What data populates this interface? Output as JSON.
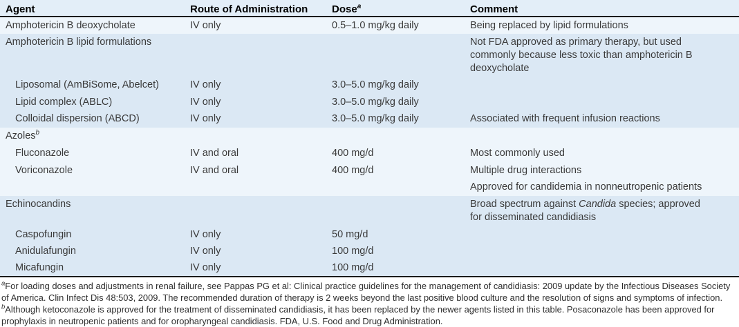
{
  "colors": {
    "band_light": "#eef5fb",
    "band_dark": "#dbe8f4",
    "header_bg": "#e3eef8",
    "rule": "#1a1a1a"
  },
  "table": {
    "columns": [
      {
        "label": "Agent",
        "sup": ""
      },
      {
        "label": "Route of Administration",
        "sup": ""
      },
      {
        "label": "Dose",
        "sup": "a"
      },
      {
        "label": "Comment",
        "sup": ""
      }
    ],
    "rows": [
      {
        "agent": "Amphotericin B deoxycholate",
        "agent_sup": "",
        "indent": false,
        "route": "IV only",
        "dose": "0.5–1.0 mg/kg daily",
        "comment_pre": "Being replaced by lipid formulations",
        "comment_italic": "",
        "comment_post": "",
        "band": "band_light"
      },
      {
        "agent": "Amphotericin B lipid formulations",
        "agent_sup": "",
        "indent": false,
        "route": "",
        "dose": "",
        "comment_pre": "Not FDA approved as primary therapy, but used commonly because less toxic than amphotericin B deoxycholate",
        "comment_italic": "",
        "comment_post": "",
        "band": "band_dark"
      },
      {
        "agent": "Liposomal (AmBiSome, Abelcet)",
        "agent_sup": "",
        "indent": true,
        "route": "IV only",
        "dose": "3.0–5.0 mg/kg daily",
        "comment_pre": "",
        "comment_italic": "",
        "comment_post": "",
        "band": "band_dark"
      },
      {
        "agent": "Lipid complex (ABLC)",
        "agent_sup": "",
        "indent": true,
        "route": "IV only",
        "dose": "3.0–5.0 mg/kg daily",
        "comment_pre": "",
        "comment_italic": "",
        "comment_post": "",
        "band": "band_dark"
      },
      {
        "agent": "Colloidal dispersion (ABCD)",
        "agent_sup": "",
        "indent": true,
        "route": "IV only",
        "dose": "3.0–5.0 mg/kg daily",
        "comment_pre": "Associated with frequent infusion reactions",
        "comment_italic": "",
        "comment_post": "",
        "band": "band_dark"
      },
      {
        "agent": "Azoles",
        "agent_sup": "b",
        "indent": false,
        "route": "",
        "dose": "",
        "comment_pre": "",
        "comment_italic": "",
        "comment_post": "",
        "band": "band_light"
      },
      {
        "agent": "Fluconazole",
        "agent_sup": "",
        "indent": true,
        "route": "IV and oral",
        "dose": "400 mg/d",
        "comment_pre": "Most commonly used",
        "comment_italic": "",
        "comment_post": "",
        "band": "band_light"
      },
      {
        "agent": "Voriconazole",
        "agent_sup": "",
        "indent": true,
        "route": "IV and oral",
        "dose": "400 mg/d",
        "comment_pre": "Multiple drug interactions",
        "comment_italic": "",
        "comment_post": "",
        "band": "band_light"
      },
      {
        "agent": "",
        "agent_sup": "",
        "indent": false,
        "route": "",
        "dose": "",
        "comment_pre": "Approved for candidemia in nonneutropenic patients",
        "comment_italic": "",
        "comment_post": "",
        "band": "band_light"
      },
      {
        "agent": "Echinocandins",
        "agent_sup": "",
        "indent": false,
        "route": "",
        "dose": "",
        "comment_pre": "Broad spectrum against ",
        "comment_italic": "Candida",
        "comment_post": " species; approved for disseminated candidiasis",
        "band": "band_dark"
      },
      {
        "agent": "Caspofungin",
        "agent_sup": "",
        "indent": true,
        "route": "IV only",
        "dose": "50 mg/d",
        "comment_pre": "",
        "comment_italic": "",
        "comment_post": "",
        "band": "band_dark"
      },
      {
        "agent": "Anidulafungin",
        "agent_sup": "",
        "indent": true,
        "route": "IV only",
        "dose": "100 mg/d",
        "comment_pre": "",
        "comment_italic": "",
        "comment_post": "",
        "band": "band_dark"
      },
      {
        "agent": "Micafungin",
        "agent_sup": "",
        "indent": true,
        "route": "IV only",
        "dose": "100 mg/d",
        "comment_pre": "",
        "comment_italic": "",
        "comment_post": "",
        "band": "band_dark"
      }
    ]
  },
  "footnotes": {
    "segments": [
      {
        "sup": "a",
        "text": "For loading doses and adjustments in renal failure, see Pappas PG et al: Clinical practice guidelines for the management of candidiasis: 2009 update by the Infectious Diseases Society of America. Clin Infect Dis 48:503, 2009. The recommended duration of therapy is 2 weeks beyond the last positive blood culture and the resolution of signs and symptoms of infection. "
      },
      {
        "sup": "b",
        "text": "Although ketoconazole is approved for the treatment of disseminated candidiasis, it has been replaced by the newer agents listed in this table. Posaconazole has been approved for prophylaxis in neutropenic patients and for oropharyngeal candidiasis. FDA, U.S. Food and Drug Administration."
      }
    ]
  }
}
